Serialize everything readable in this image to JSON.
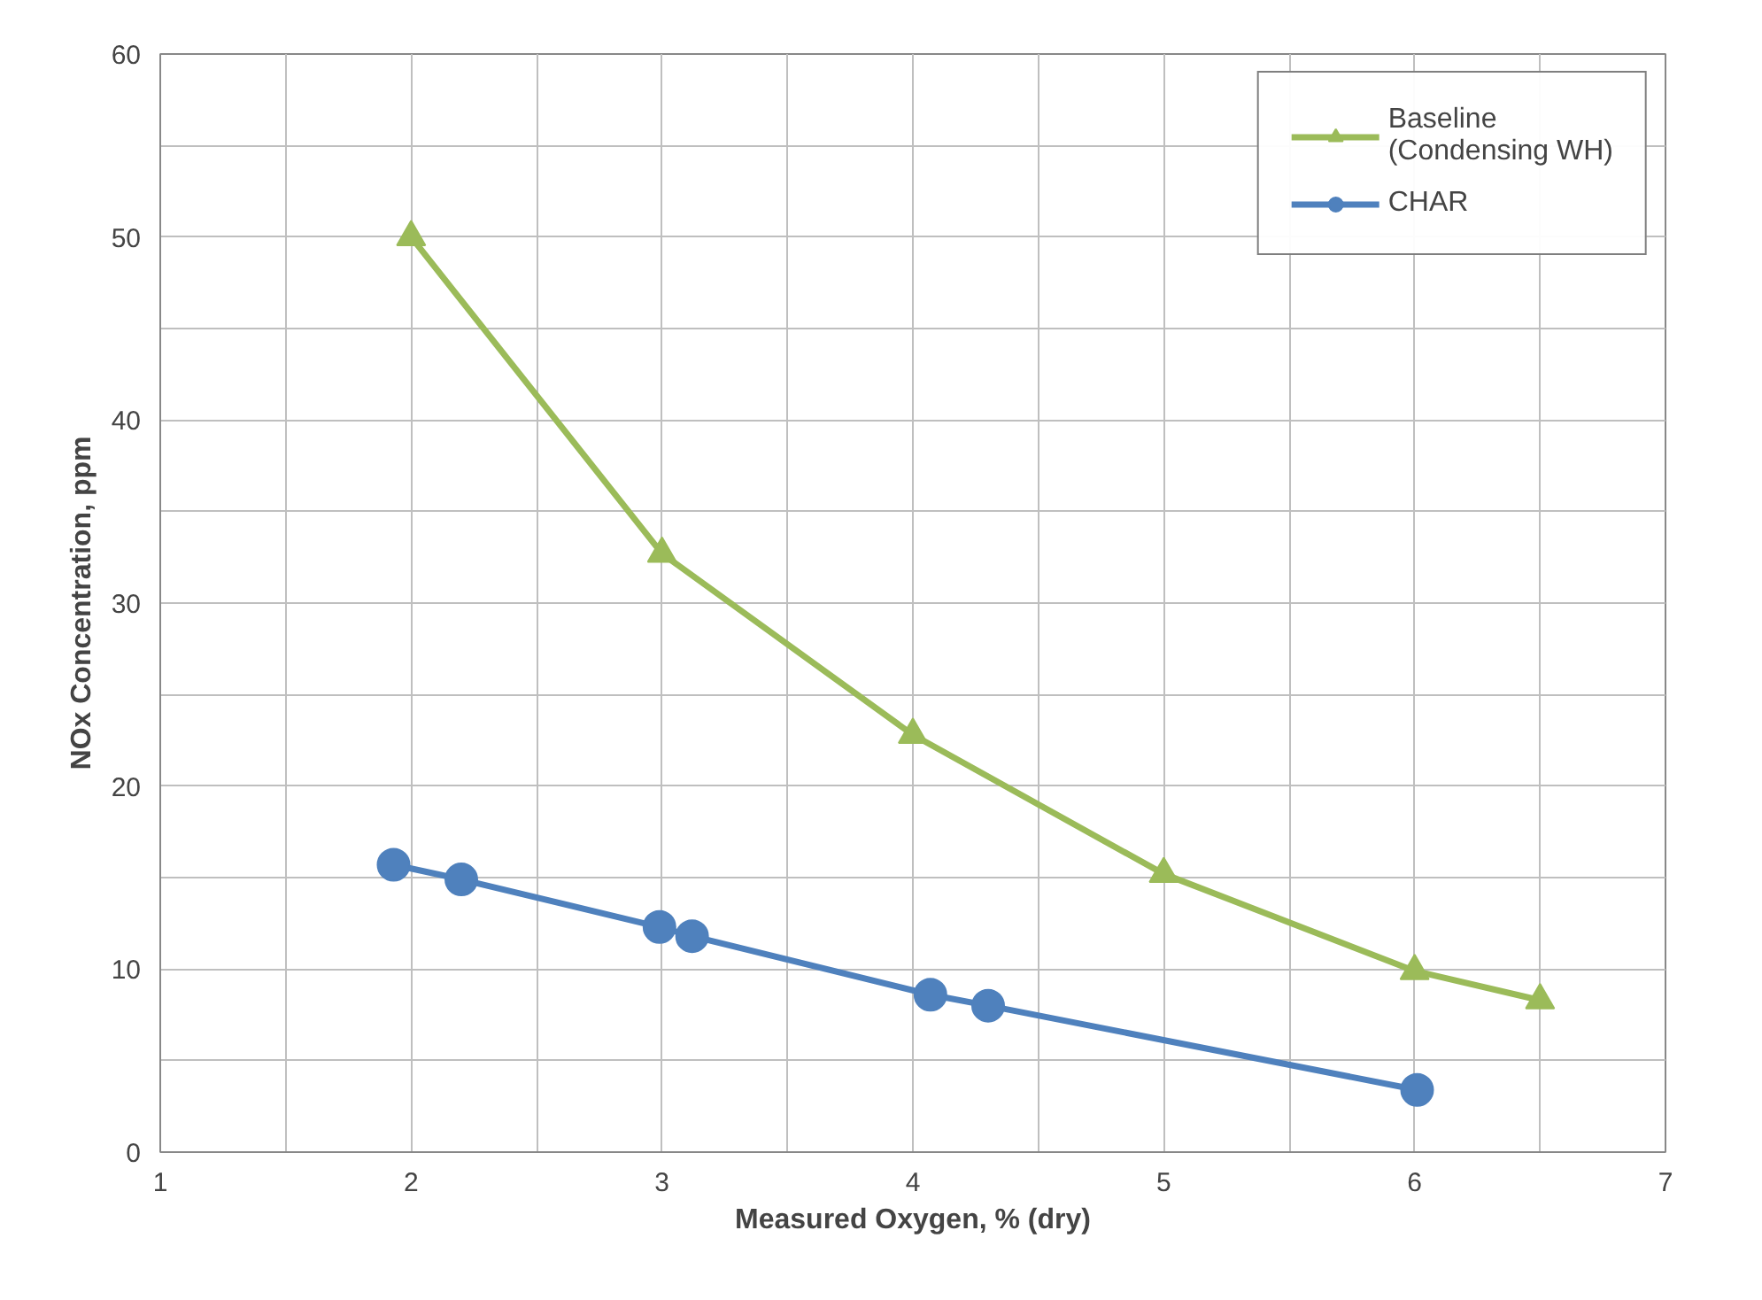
{
  "chart_data": {
    "type": "line",
    "xlabel": "Measured Oxygen, % (dry)",
    "ylabel": "NOx Concentration, ppm",
    "xlim": [
      1,
      7
    ],
    "ylim": [
      0,
      60
    ],
    "xticks": [
      1,
      {
        "value": 1.5,
        "label": null
      },
      2,
      {
        "value": 2.5,
        "label": null
      },
      3,
      {
        "value": 3.5,
        "label": null
      },
      4,
      {
        "value": 4.5,
        "label": null
      },
      5,
      {
        "value": 5.5,
        "label": null
      },
      6,
      {
        "value": 6.5,
        "label": null
      },
      7
    ],
    "yticks": [
      0,
      {
        "value": 5,
        "label": null
      },
      10,
      {
        "value": 15,
        "label": null
      },
      20,
      {
        "value": 25,
        "label": null
      },
      30,
      {
        "value": 35,
        "label": null
      },
      40,
      {
        "value": 45,
        "label": null
      },
      50,
      {
        "value": 55,
        "label": null
      },
      60
    ],
    "grid": true,
    "legend": "top right",
    "series": [
      {
        "name": "Baseline\n(Condensing WH)",
        "color": "#9bbb59",
        "marker": "triangle",
        "x": [
          2,
          3,
          4,
          5,
          6,
          6.5
        ],
        "values": [
          50,
          32.7,
          22.8,
          15.2,
          9.9,
          8.3
        ]
      },
      {
        "name": "CHAR",
        "color": "#4f81bd",
        "marker": "circle",
        "x": [
          1.93,
          2.2,
          2.99,
          3.12,
          4.07,
          4.3,
          6.01
        ],
        "values": [
          15.7,
          14.9,
          12.3,
          11.8,
          8.6,
          8.0,
          3.4
        ]
      }
    ]
  }
}
